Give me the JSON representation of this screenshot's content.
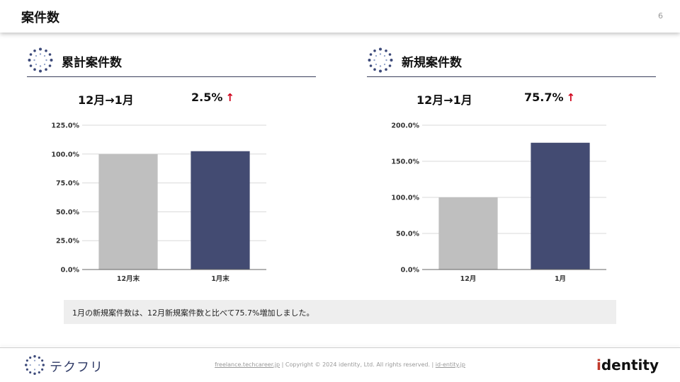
{
  "header": {
    "title": "案件数",
    "page_number": "6"
  },
  "left": {
    "title": "累計案件数",
    "period": "12月→1月",
    "change": "2.5%",
    "arrow": "↑"
  },
  "right": {
    "title": "新規案件数",
    "period": "12月→1月",
    "change": "75.7%",
    "arrow": "↑"
  },
  "chart_data": [
    {
      "type": "bar",
      "categories": [
        "12月末",
        "1月末"
      ],
      "values": [
        100.0,
        102.5
      ],
      "ylim": [
        0,
        125
      ],
      "yticks": [
        "0.0%",
        "25.0%",
        "50.0%",
        "75.0%",
        "100.0%",
        "125.0%"
      ],
      "colors": [
        "#bfbfbf",
        "#434b72"
      ],
      "grid": true
    },
    {
      "type": "bar",
      "categories": [
        "12月",
        "1月"
      ],
      "values": [
        100.0,
        175.7
      ],
      "ylim": [
        0,
        200
      ],
      "yticks": [
        "0.0%",
        "50.0%",
        "100.0%",
        "150.0%",
        "200.0%"
      ],
      "colors": [
        "#bfbfbf",
        "#434b72"
      ],
      "grid": true
    }
  ],
  "note": "1月の新規案件数は、12月新規案件数と比べて75.7%増加しました。",
  "footer": {
    "brand": "テクフリ",
    "link1": "freelance.techcareer.jp",
    "sep1": " | ",
    "copyright": "Copyright © 2024 identity, Ltd. All rights reserved.",
    "sep2": " | ",
    "link2": "id-entity.jp",
    "company_logo": "identity"
  }
}
